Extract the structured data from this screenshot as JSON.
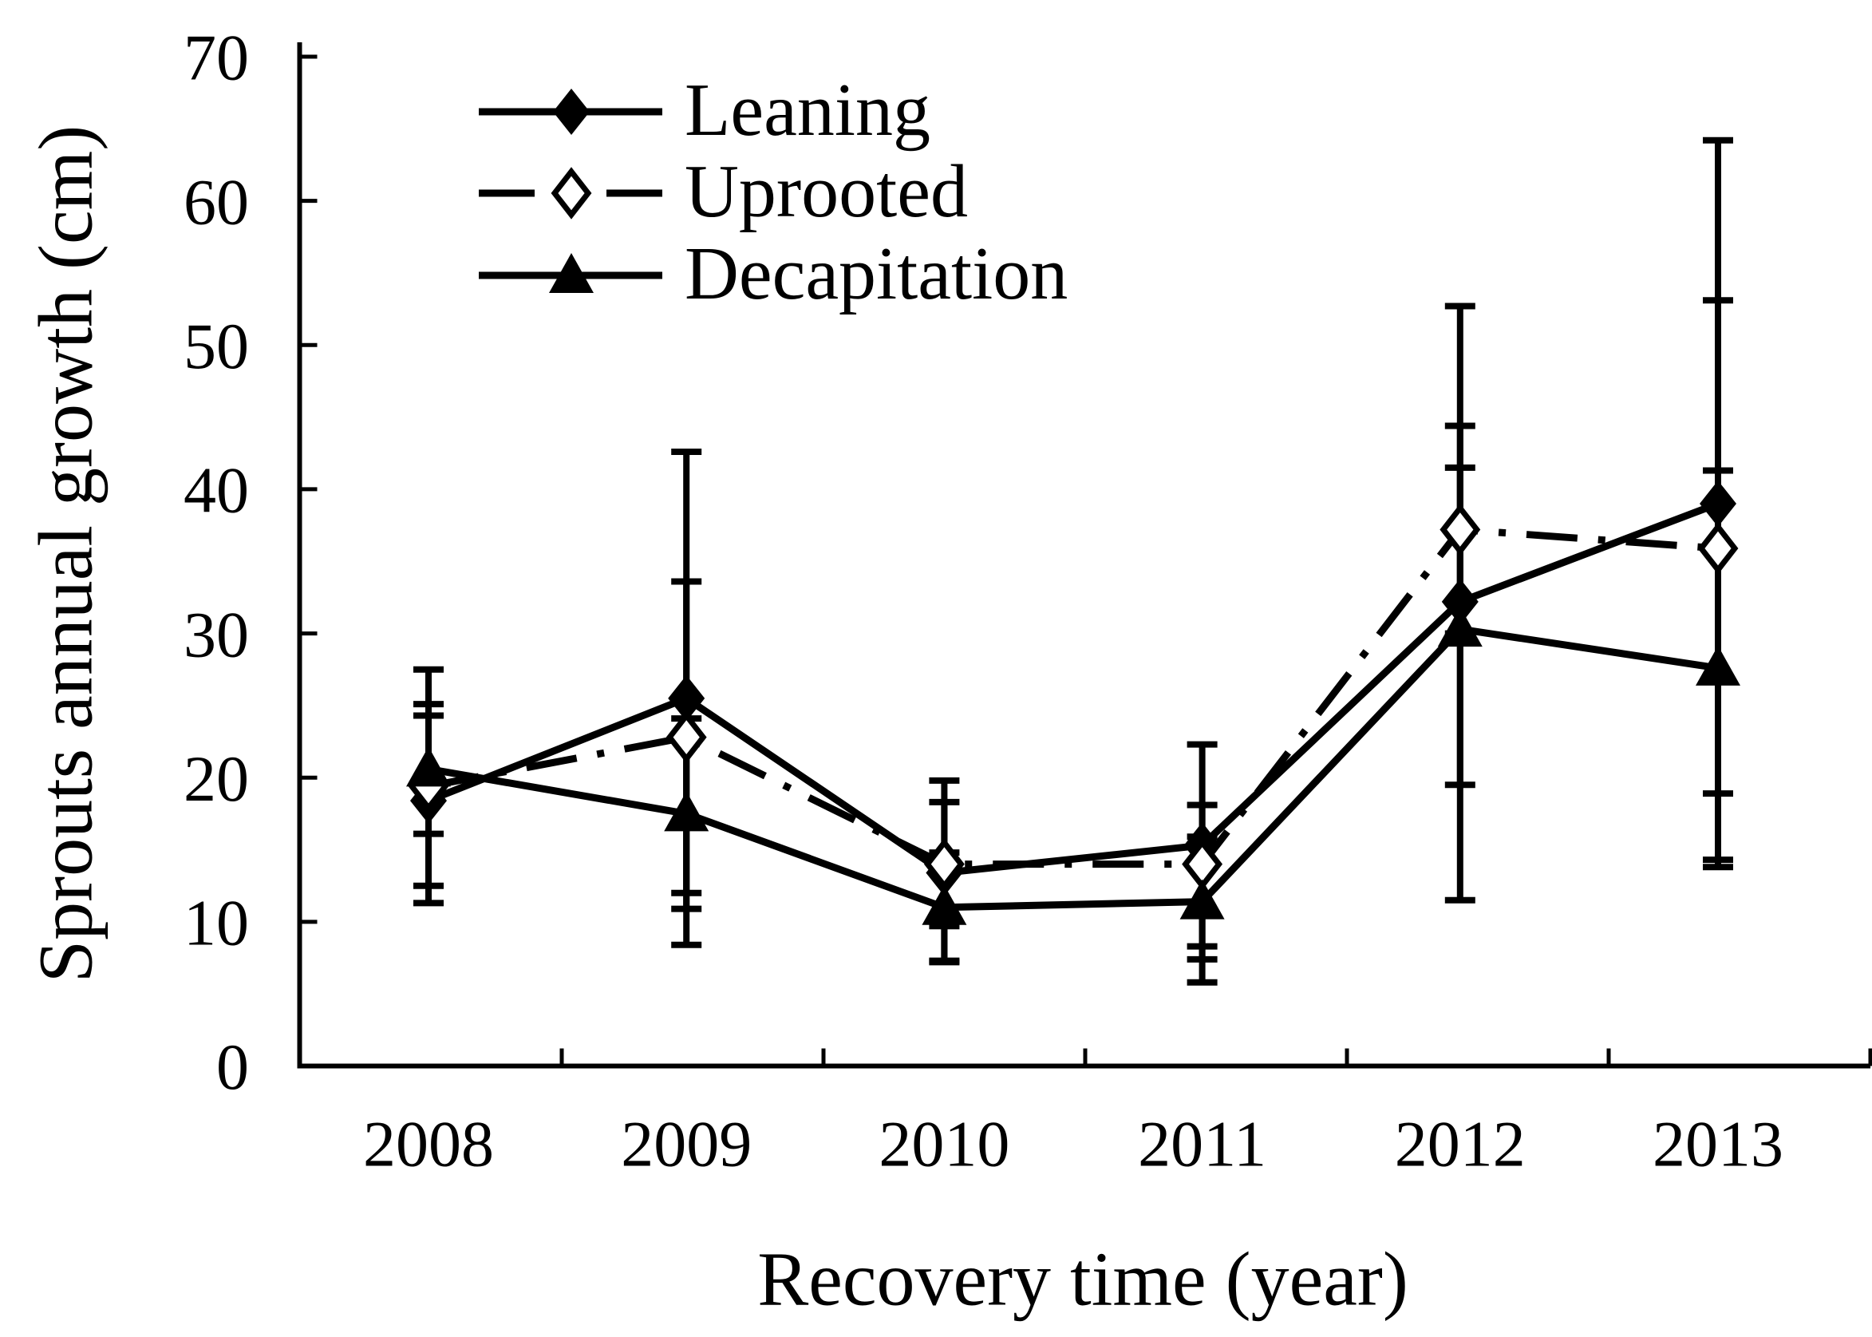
{
  "chart_data": {
    "type": "line",
    "title": "",
    "xlabel": "Recovery time (year)",
    "ylabel": "Sprouts annual growth (cm)",
    "categories": [
      "2008",
      "2009",
      "2010",
      "2011",
      "2012",
      "2013"
    ],
    "y_ticks": [
      0,
      10,
      20,
      30,
      40,
      50,
      60,
      70
    ],
    "ylim": [
      0,
      70
    ],
    "grid": false,
    "legend_position": "top-left-inside",
    "error_bars": true,
    "series": [
      {
        "name": "Leaning",
        "line": "solid",
        "marker": "diamond-filled",
        "values": [
          18.4,
          25.5,
          13.4,
          15.3,
          32.2,
          39.0
        ],
        "err_lo": [
          12.5,
          8.4,
          7.3,
          8.3,
          11.5,
          13.8
        ],
        "err_hi": [
          24.3,
          42.6,
          19.8,
          22.3,
          52.7,
          64.2
        ]
      },
      {
        "name": "Uprooted",
        "line": "dash-dot",
        "marker": "diamond-open",
        "values": [
          19.4,
          22.8,
          14.0,
          14.0,
          37.2,
          35.9
        ],
        "err_lo": [
          11.3,
          12.0,
          9.7,
          7.4,
          30.0,
          18.9
        ],
        "err_hi": [
          27.5,
          33.6,
          18.3,
          18.1,
          44.4,
          53.1
        ]
      },
      {
        "name": "Decapitation",
        "line": "solid",
        "marker": "triangle-filled",
        "values": [
          20.6,
          17.5,
          11.0,
          11.4,
          30.3,
          27.6
        ],
        "err_lo": [
          16.1,
          10.9,
          7.2,
          5.8,
          19.5,
          14.3
        ],
        "err_hi": [
          25.1,
          24.1,
          14.8,
          15.9,
          41.5,
          41.3
        ]
      }
    ],
    "colors": {
      "foreground": "#000000",
      "background": "#ffffff"
    }
  }
}
